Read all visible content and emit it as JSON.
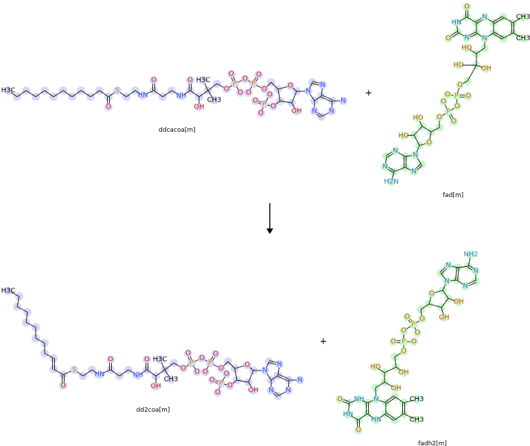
{
  "reaction": {
    "plus_top": "+",
    "plus_bottom": "+",
    "arrow_icon": "down-arrow-icon"
  },
  "colors": {
    "coa_highlight": "#c8c8f4",
    "fad_highlight": "#b4f4b4",
    "oxygen": "#e01010",
    "oxygen_fad": "#e04800",
    "nitrogen": "#2050ff",
    "nitrogen_fad": "#2a78d0",
    "sulfur": "#a8a020",
    "phosphorus": "#e08000",
    "bond": "#000000"
  },
  "molecules": [
    {
      "id": "ddcacoa",
      "name": "ddcacoa[m]",
      "atoms": [
        "H3C",
        "",
        "",
        "",
        "",
        "",
        "",
        "",
        "",
        "",
        "",
        "",
        "O",
        "S",
        "",
        "",
        "HN",
        "",
        "O",
        "",
        "",
        "NH",
        "",
        "O",
        "",
        "OH",
        "",
        "H3C",
        "CH3",
        "",
        "O",
        "P",
        "O",
        "O",
        "O",
        "P",
        "O",
        "O",
        "O",
        "",
        "",
        "O",
        "",
        "",
        "",
        "OH",
        "O",
        "P",
        "O",
        "O",
        "O",
        "N",
        "",
        "N",
        "",
        "",
        "N",
        "",
        "N",
        "",
        "N"
      ]
    },
    {
      "id": "fad",
      "name": "fad[m]",
      "atoms": [
        "O",
        "",
        "HN",
        "",
        "O",
        "N",
        "",
        "",
        "N",
        "",
        "",
        "",
        "CH3",
        "",
        "CH3",
        "",
        "",
        "N",
        "",
        "",
        "HO",
        "",
        "HO",
        "OH",
        "",
        "O",
        "P",
        "O",
        "O",
        "O",
        "O",
        "P",
        "O",
        "O",
        "",
        "",
        "O",
        "",
        "",
        "HO",
        "",
        "HO",
        "N",
        "",
        "N",
        "",
        "",
        "N",
        "",
        "N",
        "",
        "H2N"
      ]
    },
    {
      "id": "dd2coa",
      "name": "dd2coa[m]",
      "atoms": [
        "H3C",
        "",
        "",
        "",
        "",
        "",
        "",
        "",
        "",
        "",
        "",
        "",
        "O",
        "S",
        "",
        "",
        "HN",
        "",
        "O",
        "",
        "",
        "NH",
        "",
        "O",
        "",
        "OH",
        "",
        "H3C",
        "CH3",
        "",
        "O",
        "P",
        "O",
        "O",
        "O",
        "P",
        "O",
        "O",
        "O",
        "",
        "",
        "O",
        "",
        "",
        "",
        "OH",
        "O",
        "P",
        "O",
        "O",
        "O",
        "N",
        "",
        "N",
        "",
        "",
        "N",
        "",
        "N",
        "",
        "N"
      ]
    },
    {
      "id": "fadh2",
      "name": "fadh2[m]",
      "atoms": [
        "O",
        "",
        "HN",
        "",
        "O",
        "NH",
        "",
        "",
        "HN",
        "",
        "",
        "",
        "CH3",
        "",
        "CH3",
        "",
        "",
        "N",
        "",
        "",
        "OH",
        "",
        "HO",
        "",
        "OH",
        "",
        "O",
        "P",
        "O",
        "O",
        "O",
        "P",
        "O",
        "O",
        "O",
        "",
        "",
        "O",
        "",
        "",
        "OH",
        "",
        "OH",
        "N",
        "",
        "N",
        "",
        "",
        "N",
        "",
        "N",
        "",
        "NH2"
      ]
    }
  ]
}
